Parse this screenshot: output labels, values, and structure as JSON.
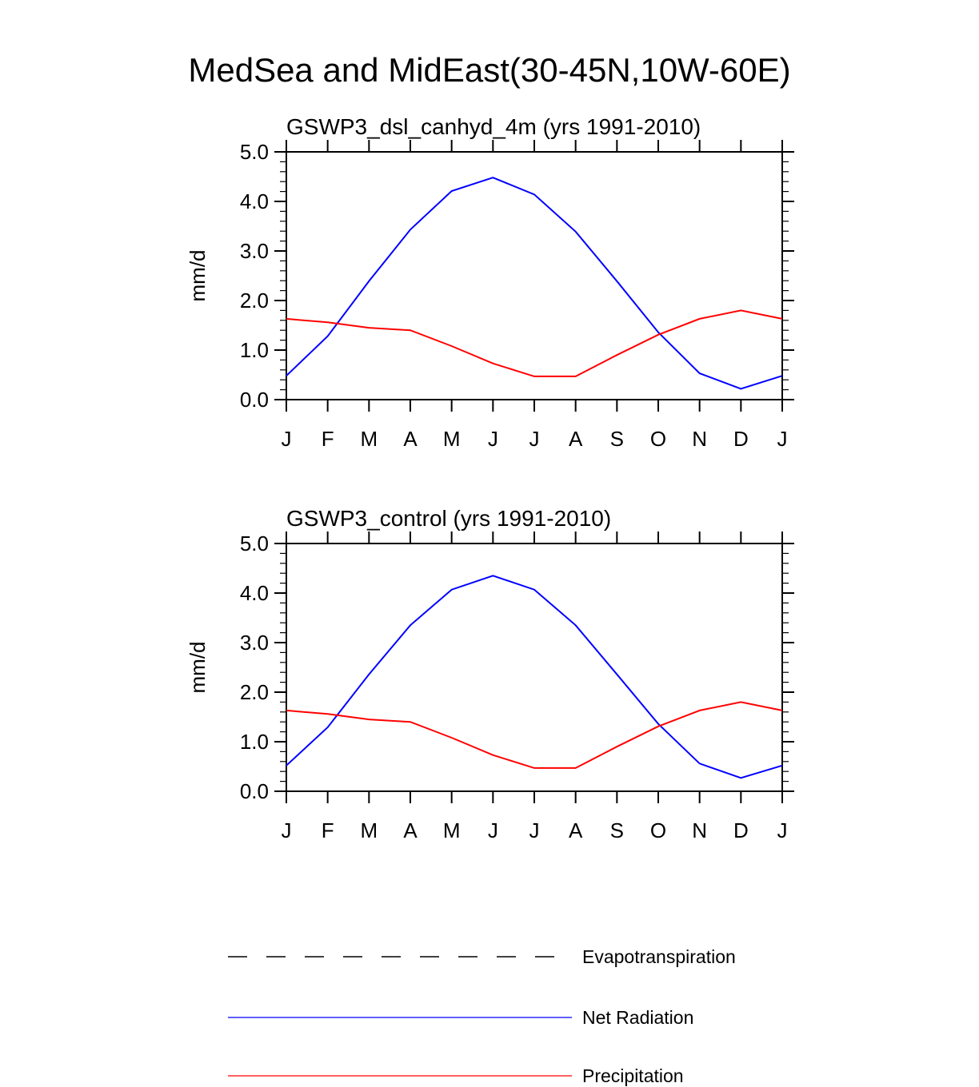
{
  "title": "MedSea and MidEast(30-45N,10W-60E)",
  "chart_data": [
    {
      "type": "line",
      "title": "GSWP3_dsl_canhyd_4m (yrs 1991-2010)",
      "ylabel": "mm/d",
      "xlabel": "",
      "ylim": [
        0,
        5
      ],
      "yticks": [
        "0.0",
        "1.0",
        "2.0",
        "3.0",
        "4.0",
        "5.0"
      ],
      "categories": [
        "J",
        "F",
        "M",
        "A",
        "M",
        "J",
        "J",
        "A",
        "S",
        "O",
        "N",
        "D",
        "J"
      ],
      "series": [
        {
          "name": "Net Radiation",
          "color": "#0000ff",
          "values": [
            0.48,
            1.28,
            2.39,
            3.43,
            4.21,
            4.48,
            4.14,
            3.39,
            2.39,
            1.36,
            0.53,
            0.22,
            0.48
          ]
        },
        {
          "name": "Precipitation",
          "color": "#ff0000",
          "values": [
            1.63,
            1.56,
            1.45,
            1.4,
            1.08,
            0.73,
            0.47,
            0.47,
            0.9,
            1.31,
            1.63,
            1.8,
            1.63
          ]
        }
      ]
    },
    {
      "type": "line",
      "title": "GSWP3_control (yrs 1991-2010)",
      "ylabel": "mm/d",
      "xlabel": "",
      "ylim": [
        0,
        5
      ],
      "yticks": [
        "0.0",
        "1.0",
        "2.0",
        "3.0",
        "4.0",
        "5.0"
      ],
      "categories": [
        "J",
        "F",
        "M",
        "A",
        "M",
        "J",
        "J",
        "A",
        "S",
        "O",
        "N",
        "D",
        "J"
      ],
      "series": [
        {
          "name": "Net Radiation",
          "color": "#0000ff",
          "values": [
            0.52,
            1.29,
            2.36,
            3.35,
            4.07,
            4.35,
            4.07,
            3.35,
            2.36,
            1.36,
            0.56,
            0.27,
            0.52
          ]
        },
        {
          "name": "Precipitation",
          "color": "#ff0000",
          "values": [
            1.63,
            1.56,
            1.45,
            1.4,
            1.08,
            0.73,
            0.47,
            0.47,
            0.9,
            1.31,
            1.63,
            1.8,
            1.63
          ]
        }
      ]
    }
  ],
  "legend": {
    "placement": "bottom",
    "items": [
      {
        "label": "Evapotranspiration",
        "color": "#000000",
        "style": "dashed"
      },
      {
        "label": "Net Radiation",
        "color": "#0000ff",
        "style": "solid"
      },
      {
        "label": "Precipitation",
        "color": "#ff0000",
        "style": "solid"
      }
    ]
  }
}
